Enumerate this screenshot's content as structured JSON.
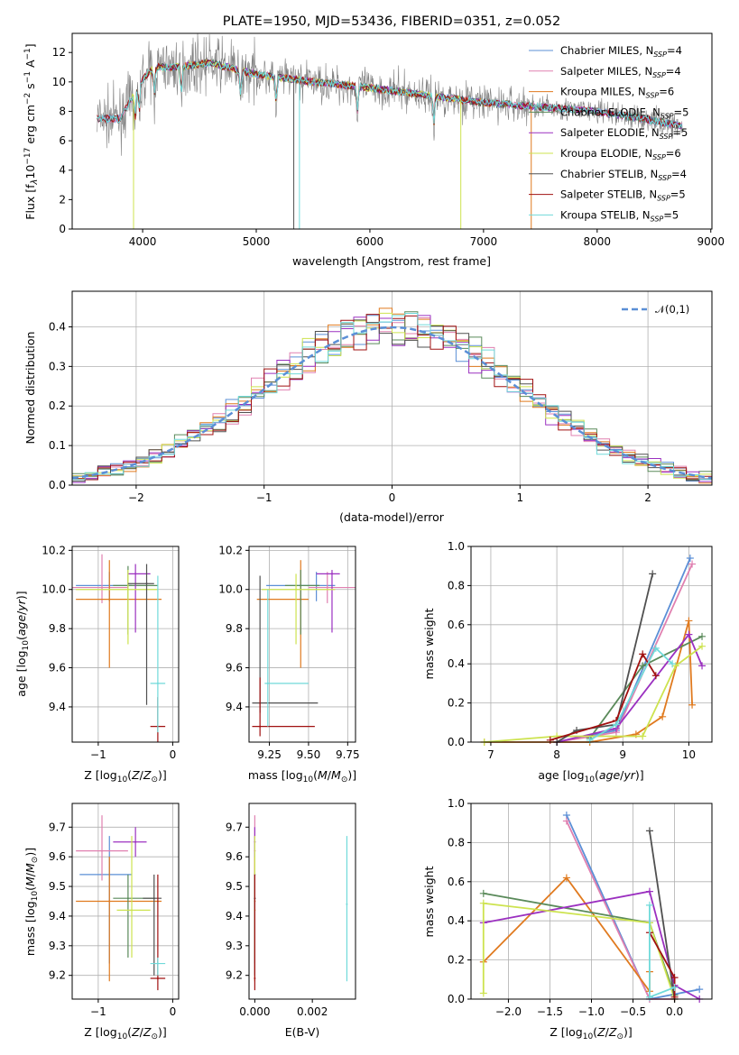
{
  "figure": {
    "title": "PLATE=1950, MJD=53436, FIBERID=0351, z=0.052"
  },
  "models": [
    {
      "name": "Chabrier MILES",
      "nssp": "4",
      "color": "#5b8fd6"
    },
    {
      "name": "Salpeter MILES",
      "nssp": "4",
      "color": "#e080b0"
    },
    {
      "name": "Kroupa MILES",
      "nssp": "6",
      "color": "#e07a1f"
    },
    {
      "name": "Chabrier ELODIE",
      "nssp": "5",
      "color": "#5a8a5a"
    },
    {
      "name": "Salpeter ELODIE",
      "nssp": "5",
      "color": "#9b30c0"
    },
    {
      "name": "Kroupa ELODIE",
      "nssp": "6",
      "color": "#cde34f"
    },
    {
      "name": "Chabrier STELIB",
      "nssp": "4",
      "color": "#505050"
    },
    {
      "name": "Salpeter STELIB",
      "nssp": "5",
      "color": "#a01010"
    },
    {
      "name": "Kroupa STELIB",
      "nssp": "5",
      "color": "#70dada"
    }
  ],
  "chart_data": [
    {
      "id": "spectrum",
      "type": "line",
      "title": "PLATE=1950, MJD=53436, FIBERID=0351, z=0.052",
      "xlabel": "wavelength [Angstrom, rest frame]",
      "ylabel": "Flux [f_λ10^-17 erg cm^-2 s^-1 A^-1]",
      "xlim": [
        3380,
        9010
      ],
      "ylim": [
        0,
        13.3
      ],
      "xticks": [
        4000,
        5000,
        6000,
        7000,
        8000,
        9000
      ],
      "yticks": [
        0,
        2,
        4,
        6,
        8,
        10,
        12
      ],
      "data_color": "#808080",
      "continuum": {
        "x": [
          3600,
          3800,
          4000,
          4100,
          4300,
          4600,
          5000,
          5500,
          6000,
          6500,
          7000,
          7500,
          8000,
          8400,
          8750
        ],
        "y": [
          7.5,
          7.5,
          10.2,
          11.0,
          11.0,
          11.3,
          10.5,
          10.0,
          9.6,
          9.1,
          8.6,
          8.3,
          8.0,
          7.5,
          7.0
        ]
      },
      "model_ranges": [
        [
          3600,
          8750
        ],
        [
          3600,
          8750
        ],
        [
          3900,
          7430
        ],
        [
          3900,
          8750
        ],
        [
          3900,
          8750
        ],
        [
          3900,
          6800
        ],
        [
          3600,
          8750
        ],
        [
          3600,
          8750
        ],
        [
          3600,
          8750
        ]
      ],
      "legend": "upper right",
      "grid": false
    },
    {
      "id": "residuals",
      "type": "line",
      "xlabel": "(data-model)/error",
      "ylabel": "Normed distribution",
      "xlim": [
        -2.5,
        2.5
      ],
      "ylim": [
        0,
        0.49
      ],
      "xticks": [
        -2,
        -1,
        0,
        1,
        2
      ],
      "yticks": [
        0.0,
        0.1,
        0.2,
        0.3,
        0.4
      ],
      "reference": {
        "name": "𝒩(0,1)",
        "mean": 0,
        "sigma": 1,
        "color": "#5b8fd6",
        "style": "dashed"
      },
      "bin_width": 0.1,
      "legend": "upper right",
      "grid": true
    },
    {
      "id": "age_vs_Z",
      "type": "scatter",
      "xlabel": "Z [log10(Z/Z_sun)]",
      "ylabel": "age [log10(age/yr)]",
      "xlim": [
        -1.35,
        0.08
      ],
      "ylim": [
        9.22,
        10.22
      ],
      "xticks": [
        -1,
        0
      ],
      "yticks": [
        9.4,
        9.6,
        9.8,
        10.0,
        10.2
      ],
      "points": [
        {
          "x": -0.85,
          "y": 10.02,
          "xerr": [
            0.45,
            0.3
          ],
          "yerr": [
            0.08,
            0.07
          ]
        },
        {
          "x": -0.95,
          "y": 10.01,
          "xerr": [
            0.4,
            0.35
          ],
          "yerr": [
            0.08,
            0.17
          ]
        },
        {
          "x": -0.85,
          "y": 9.95,
          "xerr": [
            0.45,
            0.7
          ],
          "yerr": [
            0.35,
            0.2
          ]
        },
        {
          "x": -0.6,
          "y": 10.02,
          "xerr": [
            0.2,
            0.4
          ],
          "yerr": [
            0.25,
            0.1
          ]
        },
        {
          "x": -0.5,
          "y": 10.08,
          "xerr": [
            0.1,
            0.2
          ],
          "yerr": [
            0.3,
            0.05
          ]
        },
        {
          "x": -0.6,
          "y": 10.0,
          "xerr": [
            0.7,
            0.4
          ],
          "yerr": [
            0.28,
            0.1
          ]
        },
        {
          "x": -0.35,
          "y": 10.03,
          "xerr": [
            0.25,
            0.1
          ],
          "yerr": [
            0.62,
            0.1
          ]
        },
        {
          "x": -0.2,
          "y": 9.3,
          "xerr": [
            0.1,
            0.1
          ],
          "yerr": [
            0.15,
            0.15
          ]
        },
        {
          "x": -0.2,
          "y": 9.52,
          "xerr": [
            0.1,
            0.1
          ],
          "yerr": [
            0.25,
            0.55
          ]
        }
      ],
      "grid": true
    },
    {
      "id": "age_vs_mass",
      "type": "scatter",
      "xlabel": "mass [log10(M/M_sun)]",
      "ylabel": "",
      "xlim": [
        9.12,
        9.8
      ],
      "ylim": [
        9.22,
        10.22
      ],
      "xticks": [
        9.25,
        9.5,
        9.75
      ],
      "yticks": [
        9.4,
        9.6,
        9.8,
        10.0,
        10.2
      ],
      "points": [
        {
          "x": 9.55,
          "y": 10.02,
          "xerr": [
            0.32,
            0.12
          ],
          "yerr": [
            0.08,
            0.07
          ]
        },
        {
          "x": 9.62,
          "y": 10.01,
          "xerr": [
            0.12,
            0.18
          ],
          "yerr": [
            0.08,
            0.08
          ]
        },
        {
          "x": 9.45,
          "y": 9.95,
          "xerr": [
            0.28,
            0.05
          ],
          "yerr": [
            0.35,
            0.2
          ]
        },
        {
          "x": 9.45,
          "y": 10.02,
          "xerr": [
            0.1,
            0.12
          ],
          "yerr": [
            0.25,
            0.08
          ]
        },
        {
          "x": 9.65,
          "y": 10.08,
          "xerr": [
            0.1,
            0.05
          ],
          "yerr": [
            0.3,
            0.02
          ]
        },
        {
          "x": 9.42,
          "y": 10.0,
          "xerr": [
            0.22,
            0.25
          ],
          "yerr": [
            0.28,
            0.08
          ]
        },
        {
          "x": 9.19,
          "y": 9.42,
          "xerr": [
            0.05,
            0.37
          ],
          "yerr": [
            0.05,
            0.65
          ]
        },
        {
          "x": 9.19,
          "y": 9.3,
          "xerr": [
            0.05,
            0.35
          ],
          "yerr": [
            0.05,
            0.25
          ]
        },
        {
          "x": 9.24,
          "y": 9.52,
          "xerr": [
            0.02,
            0.26
          ],
          "yerr": [
            0.22,
            0.48
          ]
        }
      ],
      "grid": true
    },
    {
      "id": "massweight_vs_age",
      "type": "line",
      "xlabel": "age [log10(age/yr)]",
      "ylabel": "mass weight",
      "xlim": [
        6.7,
        10.35
      ],
      "ylim": [
        0,
        1.0
      ],
      "xticks": [
        7,
        8,
        9,
        10
      ],
      "yticks": [
        0.0,
        0.2,
        0.4,
        0.6,
        0.8,
        1.0
      ],
      "series": [
        {
          "x": [
            8.0,
            8.9,
            10.02
          ],
          "y": [
            0.0,
            0.06,
            0.94
          ]
        },
        {
          "x": [
            8.0,
            8.9,
            10.05
          ],
          "y": [
            0.0,
            0.05,
            0.91
          ]
        },
        {
          "x": [
            6.9,
            8.5,
            9.2,
            9.6,
            10.0,
            10.05
          ],
          "y": [
            0.0,
            0.0,
            0.04,
            0.13,
            0.62,
            0.19
          ]
        },
        {
          "x": [
            8.5,
            9.3,
            10.2
          ],
          "y": [
            0.02,
            0.39,
            0.54
          ]
        },
        {
          "x": [
            8.0,
            8.9,
            10.0,
            10.2
          ],
          "y": [
            0.0,
            0.07,
            0.55,
            0.39
          ]
        },
        {
          "x": [
            6.9,
            8.0,
            9.3,
            9.8,
            10.2
          ],
          "y": [
            0.0,
            0.03,
            0.03,
            0.39,
            0.49
          ]
        },
        {
          "x": [
            8.0,
            8.3,
            8.9,
            9.45
          ],
          "y": [
            0.0,
            0.06,
            0.09,
            0.86
          ]
        },
        {
          "x": [
            7.9,
            8.9,
            9.3,
            9.5
          ],
          "y": [
            0.01,
            0.11,
            0.45,
            0.34
          ]
        },
        {
          "x": [
            8.5,
            8.9,
            9.5,
            9.75
          ],
          "y": [
            0.01,
            0.09,
            0.48,
            0.4
          ]
        }
      ],
      "grid": true
    },
    {
      "id": "mass_vs_Z",
      "type": "scatter",
      "xlabel": "Z [log10(Z/Z_sun)]",
      "ylabel": "mass [log10(M/M_sun)]",
      "xlim": [
        -1.35,
        0.08
      ],
      "ylim": [
        9.12,
        9.78
      ],
      "xticks": [
        -1,
        0
      ],
      "yticks": [
        9.2,
        9.3,
        9.4,
        9.5,
        9.6,
        9.7
      ],
      "points": [
        {
          "x": -0.85,
          "y": 9.54,
          "xerr": [
            0.4,
            0.3
          ],
          "yerr": [
            0.3,
            0.13
          ]
        },
        {
          "x": -0.95,
          "y": 9.62,
          "xerr": [
            0.35,
            0.35
          ],
          "yerr": [
            0.1,
            0.12
          ]
        },
        {
          "x": -0.85,
          "y": 9.45,
          "xerr": [
            0.45,
            0.7
          ],
          "yerr": [
            0.27,
            0.15
          ]
        },
        {
          "x": -0.6,
          "y": 9.46,
          "xerr": [
            0.2,
            0.35
          ],
          "yerr": [
            0.2,
            0.08
          ]
        },
        {
          "x": -0.5,
          "y": 9.65,
          "xerr": [
            0.3,
            0.15
          ],
          "yerr": [
            0.05,
            0.05
          ]
        },
        {
          "x": -0.55,
          "y": 9.42,
          "xerr": [
            0.2,
            0.25
          ],
          "yerr": [
            0.16,
            0.25
          ]
        },
        {
          "x": -0.25,
          "y": 9.46,
          "xerr": [
            0.15,
            0.1
          ],
          "yerr": [
            0.26,
            0.08
          ]
        },
        {
          "x": -0.2,
          "y": 9.19,
          "xerr": [
            0.1,
            0.1
          ],
          "yerr": [
            0.04,
            0.35
          ]
        },
        {
          "x": -0.2,
          "y": 9.24,
          "xerr": [
            0.1,
            0.1
          ],
          "yerr": [
            0.04,
            0.02
          ]
        }
      ],
      "grid": true
    },
    {
      "id": "mass_vs_ebv",
      "type": "scatter",
      "xlabel": "E(B-V)",
      "ylabel": "",
      "xlim": [
        -0.0002,
        0.0035
      ],
      "ylim": [
        9.12,
        9.78
      ],
      "xticks": [
        0.0,
        0.002
      ],
      "yticks": [
        9.2,
        9.3,
        9.4,
        9.5,
        9.6,
        9.7
      ],
      "tick_labels": [
        "0.000",
        "0.002"
      ],
      "points": [
        {
          "x": 0.0,
          "y": 9.54,
          "yerr": [
            0.3,
            0.13
          ]
        },
        {
          "x": 0.0,
          "y": 9.62,
          "yerr": [
            0.1,
            0.12
          ]
        },
        {
          "x": 0.0,
          "y": 9.45,
          "yerr": [
            0.27,
            0.15
          ]
        },
        {
          "x": 0.0,
          "y": 9.46,
          "yerr": [
            0.2,
            0.08
          ]
        },
        {
          "x": 0.0,
          "y": 9.65,
          "yerr": [
            0.05,
            0.05
          ]
        },
        {
          "x": 0.0,
          "y": 9.42,
          "yerr": [
            0.16,
            0.25
          ]
        },
        {
          "x": 0.0,
          "y": 9.46,
          "yerr": [
            0.26,
            0.08
          ]
        },
        {
          "x": 0.0,
          "y": 9.19,
          "yerr": [
            0.04,
            0.35
          ]
        },
        {
          "x": 0.0032,
          "y": 9.44,
          "yerr": [
            0.26,
            0.23
          ]
        }
      ],
      "grid": false
    },
    {
      "id": "massweight_vs_Z",
      "type": "line",
      "xlabel": "Z [log10(Z/Z_sun)]",
      "ylabel": "mass weight",
      "xlim": [
        -2.45,
        0.45
      ],
      "ylim": [
        0,
        1.0
      ],
      "xticks": [
        -2.0,
        -1.5,
        -1.0,
        -0.5,
        0.0
      ],
      "tick_labels": [
        "−2.0",
        "−1.5",
        "−1.0",
        "−0.5",
        "0.0"
      ],
      "yticks": [
        0.0,
        0.2,
        0.4,
        0.6,
        0.8,
        1.0
      ],
      "series": [
        {
          "x": [
            -1.3,
            -0.3,
            0.3
          ],
          "y": [
            0.94,
            0.0,
            0.05
          ]
        },
        {
          "x": [
            -1.3,
            -0.3,
            0.0
          ],
          "y": [
            0.91,
            0.0,
            0.0
          ]
        },
        {
          "x": [
            -2.3,
            -1.3,
            -0.3,
            -0.3
          ],
          "y": [
            0.19,
            0.62,
            0.04,
            0.14
          ]
        },
        {
          "x": [
            -2.3,
            -0.3,
            0.0
          ],
          "y": [
            0.54,
            0.39,
            0.02
          ]
        },
        {
          "x": [
            -2.3,
            -0.3,
            0.0,
            0.3
          ],
          "y": [
            0.39,
            0.55,
            0.07,
            0.0
          ]
        },
        {
          "x": [
            -2.3,
            -2.3,
            -0.3,
            0.0
          ],
          "y": [
            0.03,
            0.49,
            0.39,
            0.0
          ]
        },
        {
          "x": [
            -0.3,
            0.0
          ],
          "y": [
            0.86,
            0.0
          ]
        },
        {
          "x": [
            -0.3,
            0.0,
            0.0
          ],
          "y": [
            0.34,
            0.11,
            0.01
          ]
        },
        {
          "x": [
            -0.3,
            -0.3,
            0.0
          ],
          "y": [
            0.48,
            0.01,
            0.06
          ]
        }
      ],
      "grid": true
    }
  ]
}
